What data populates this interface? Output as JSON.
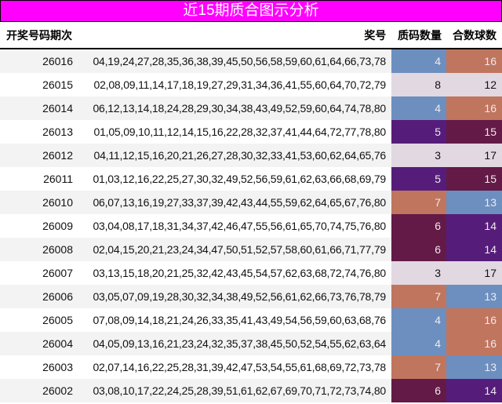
{
  "title": "近15期质合图示分析",
  "headers": {
    "period": "开奖号码期次",
    "numbers": "奖号",
    "prime_count": "质码数量",
    "composite_count": "合数球数"
  },
  "colors": {
    "3": "#e2d8e2",
    "4": "#6c8fbf",
    "5": "#551d79",
    "6": "#631a46",
    "7": "#c0755e",
    "8": "#e2d8e2",
    "12": "#e2d8e2",
    "13": "#6c8fbf",
    "14": "#551d79",
    "15": "#631a46",
    "16": "#c0755e",
    "17": "#e2d8e2"
  },
  "rows": [
    {
      "period": "26016",
      "numbers": "04,19,24,27,28,35,36,38,39,45,50,56,58,59,60,61,64,66,73,78",
      "prime": "4",
      "composite": "16"
    },
    {
      "period": "26015",
      "numbers": "02,08,09,11,14,17,18,19,27,29,31,34,36,41,55,60,64,70,72,79",
      "prime": "8",
      "composite": "12"
    },
    {
      "period": "26014",
      "numbers": "06,12,13,14,18,24,28,29,30,34,38,43,49,52,59,60,64,74,78,80",
      "prime": "4",
      "composite": "16"
    },
    {
      "period": "26013",
      "numbers": "01,05,09,10,11,12,14,15,16,22,28,32,37,41,44,64,72,77,78,80",
      "prime": "5",
      "composite": "15"
    },
    {
      "period": "26012",
      "numbers": "04,11,12,15,16,20,21,26,27,28,30,32,33,41,53,60,62,64,65,76",
      "prime": "3",
      "composite": "17"
    },
    {
      "period": "26011",
      "numbers": "01,03,12,16,22,25,27,30,32,49,52,56,59,61,62,63,66,68,69,79",
      "prime": "5",
      "composite": "15"
    },
    {
      "period": "26010",
      "numbers": "06,07,13,16,19,27,33,37,39,42,43,44,55,59,62,64,65,67,76,80",
      "prime": "7",
      "composite": "13"
    },
    {
      "period": "26009",
      "numbers": "03,04,08,17,18,31,34,37,42,46,47,55,56,61,65,70,74,75,76,80",
      "prime": "6",
      "composite": "14"
    },
    {
      "period": "26008",
      "numbers": "02,04,15,20,21,23,24,34,47,50,51,52,57,58,60,61,66,71,77,79",
      "prime": "6",
      "composite": "14"
    },
    {
      "period": "26007",
      "numbers": "03,13,15,18,20,21,25,32,42,43,45,54,57,62,63,68,72,74,76,80",
      "prime": "3",
      "composite": "17"
    },
    {
      "period": "26006",
      "numbers": "03,05,07,09,19,28,30,32,34,38,49,52,56,61,62,66,73,76,78,79",
      "prime": "7",
      "composite": "13"
    },
    {
      "period": "26005",
      "numbers": "07,08,09,14,18,21,24,26,33,35,41,43,49,54,56,59,60,63,68,76",
      "prime": "4",
      "composite": "16"
    },
    {
      "period": "26004",
      "numbers": "04,05,09,13,16,21,23,24,32,35,37,38,45,50,52,54,55,62,63,64",
      "prime": "4",
      "composite": "16"
    },
    {
      "period": "26003",
      "numbers": "02,07,14,16,22,25,28,31,39,42,47,53,54,55,61,68,69,72,73,78",
      "prime": "7",
      "composite": "13"
    },
    {
      "period": "26002",
      "numbers": "03,08,10,17,22,24,25,28,39,51,61,62,67,69,70,71,72,73,74,80",
      "prime": "6",
      "composite": "14"
    }
  ]
}
